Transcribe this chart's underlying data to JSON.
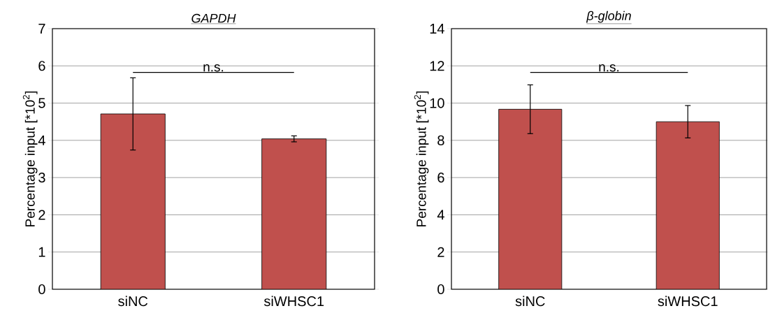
{
  "chart_data": [
    {
      "type": "bar",
      "title": "GAPDH",
      "ylabel": "Percentage input [*10$^{2}$]",
      "categories": [
        "siNC",
        "siWHSC1"
      ],
      "values": [
        4.71,
        4.04
      ],
      "errors": [
        0.97,
        0.08
      ],
      "color": "#c0504d",
      "ylim": [
        0,
        7
      ],
      "yticks": [
        0,
        1,
        2,
        3,
        4,
        5,
        6,
        7
      ],
      "grid": "y",
      "annotations": [
        "n.s."
      ]
    },
    {
      "type": "bar",
      "title": "β-globin",
      "ylabel": "Percentage input [*10$^{2}$]",
      "categories": [
        "siNC",
        "siWHSC1"
      ],
      "values": [
        9.67,
        9.0
      ],
      "errors": [
        1.31,
        0.87
      ],
      "color": "#c0504d",
      "ylim": [
        0,
        14
      ],
      "yticks": [
        0,
        2,
        4,
        6,
        8,
        10,
        12,
        14
      ],
      "grid": "y",
      "annotations": [
        "n.s."
      ]
    }
  ]
}
